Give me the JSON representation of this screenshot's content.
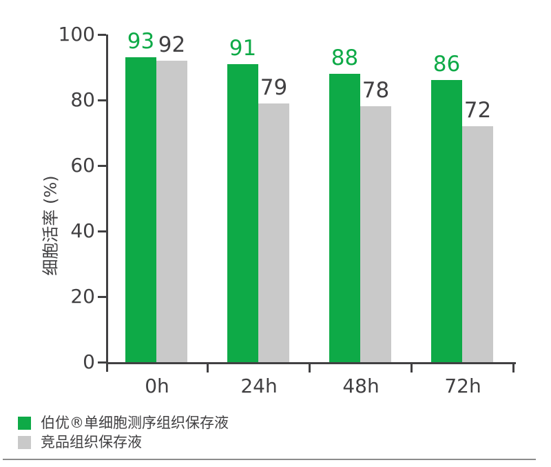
{
  "chart_data": {
    "type": "bar",
    "title": "",
    "categories": [
      "0h",
      "24h",
      "48h",
      "72h"
    ],
    "series": [
      {
        "name": "伯优®单细胞测序组织保存液",
        "color": "#0eaa47",
        "values": [
          93,
          91,
          88,
          86
        ]
      },
      {
        "name": "竞品组织保存液",
        "color": "#c9c9c9",
        "values": [
          92,
          79,
          78,
          72
        ]
      }
    ],
    "xlabel": "",
    "ylabel": "细胞活率 (%)",
    "ylim": [
      0,
      100
    ],
    "yticks": [
      0,
      20,
      40,
      60,
      80,
      100
    ],
    "grid": false,
    "legend_position": "bottom-left",
    "value_labels": true
  },
  "colors": {
    "bar_green": "#0eaa47",
    "bar_gray": "#c9c9c9",
    "text_dark": "#414042",
    "axis": "#414042",
    "divider": "#8c8c8c",
    "background": "#ffffff"
  }
}
